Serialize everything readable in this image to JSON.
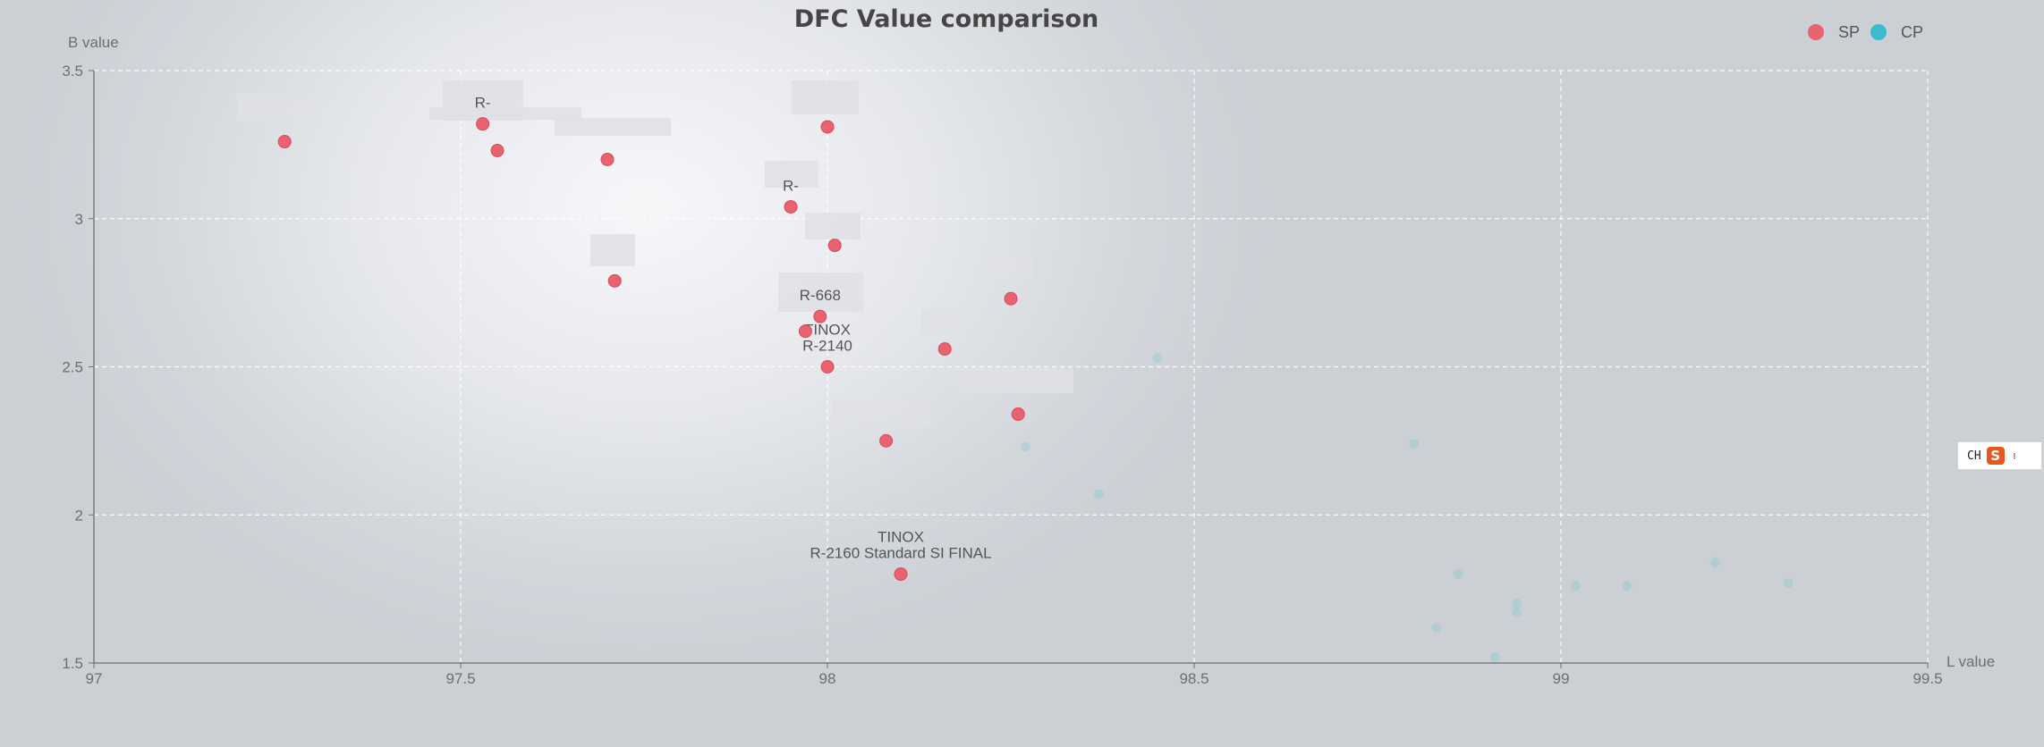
{
  "chart_data": {
    "type": "scatter",
    "title": "DFC Value comparison",
    "xlabel": "L value",
    "ylabel": "B value",
    "xlim": [
      97,
      99.5
    ],
    "ylim": [
      1.5,
      3.5
    ],
    "x_ticks": [
      "97",
      "97.5",
      "98",
      "98.5",
      "99",
      "99.5"
    ],
    "y_ticks": [
      "1.5",
      "2",
      "2.5",
      "3",
      "3.5"
    ],
    "grid": true,
    "legend_position": "top-right",
    "series": [
      {
        "name": "SP",
        "color": "#e8636f",
        "points": [
          {
            "x": 97.26,
            "y": 3.26,
            "label": ""
          },
          {
            "x": 97.53,
            "y": 3.32,
            "label": "R-"
          },
          {
            "x": 97.55,
            "y": 3.23,
            "label": ""
          },
          {
            "x": 97.7,
            "y": 3.2,
            "label": ""
          },
          {
            "x": 97.71,
            "y": 2.79,
            "label": ""
          },
          {
            "x": 97.95,
            "y": 3.04,
            "label": "R-"
          },
          {
            "x": 98.0,
            "y": 3.31,
            "label": ""
          },
          {
            "x": 98.01,
            "y": 2.91,
            "label": ""
          },
          {
            "x": 97.99,
            "y": 2.67,
            "label": "R-668"
          },
          {
            "x": 97.97,
            "y": 2.62,
            "label": ""
          },
          {
            "x": 98.0,
            "y": 2.5,
            "label": "TINOX\nR-2140"
          },
          {
            "x": 98.08,
            "y": 2.25,
            "label": ""
          },
          {
            "x": 98.16,
            "y": 2.56,
            "label": ""
          },
          {
            "x": 98.25,
            "y": 2.73,
            "label": ""
          },
          {
            "x": 98.26,
            "y": 2.34,
            "label": ""
          },
          {
            "x": 98.1,
            "y": 1.8,
            "label": "TINOX\nR-2160 Standard SI FINAL"
          }
        ]
      },
      {
        "name": "CP",
        "color": "#3dbbd3",
        "points": [
          {
            "x": 98.27,
            "y": 2.23
          },
          {
            "x": 98.37,
            "y": 2.07
          },
          {
            "x": 98.45,
            "y": 2.53
          },
          {
            "x": 98.8,
            "y": 2.24
          },
          {
            "x": 98.83,
            "y": 1.62
          },
          {
            "x": 98.86,
            "y": 1.8
          },
          {
            "x": 98.91,
            "y": 1.52
          },
          {
            "x": 98.94,
            "y": 1.7
          },
          {
            "x": 98.94,
            "y": 1.67
          },
          {
            "x": 99.02,
            "y": 1.76
          },
          {
            "x": 99.09,
            "y": 1.76
          },
          {
            "x": 99.21,
            "y": 1.84
          },
          {
            "x": 99.31,
            "y": 1.77
          }
        ]
      }
    ]
  },
  "ime_toolbar": {
    "lang_label": "CH",
    "logo_glyph": "S",
    "more_glyph": "⋯"
  }
}
